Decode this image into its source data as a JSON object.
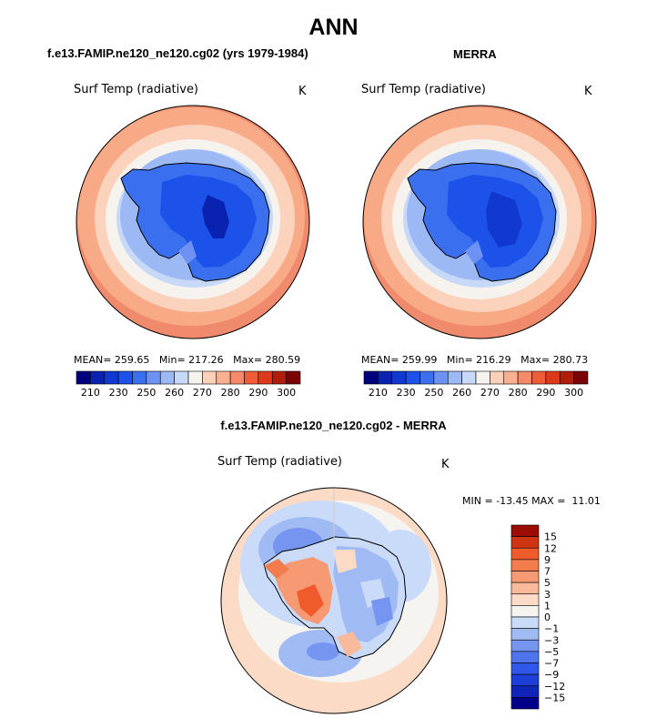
{
  "main_title": "ANN",
  "colors": {
    "abs_scale": [
      "#00007f",
      "#0a22b0",
      "#1238d2",
      "#1d52ea",
      "#3a70f0",
      "#6d92f3",
      "#9cb8f5",
      "#c7d9f7",
      "#f6f2ee",
      "#fbd0b8",
      "#f9b090",
      "#f5896a",
      "#ef5c38",
      "#dd3a1b",
      "#b01d0b",
      "#7a0404"
    ],
    "diff_scale": [
      "#00008a",
      "#0f26b8",
      "#1d3fd8",
      "#2f58ea",
      "#4f74ee",
      "#7595f1",
      "#a0baf4",
      "#c9dbf8",
      "#f5f4f0",
      "#fbdac6",
      "#f9b99b",
      "#f79a74",
      "#f37c4d",
      "#ef5b2b",
      "#cf3412",
      "#9a0c04"
    ],
    "map_ocean_far": "#f08a6c",
    "map_ocean_mid": "#fbd3bd",
    "map_land": "#3a70f0"
  },
  "chart_data": [
    {
      "type": "heatmap",
      "panel": "model",
      "header": "f.e13.FAMIP.ne120_ne120.cg02 (yrs 1979-1984)",
      "title": "Surf Temp (radiative)",
      "units": "K",
      "stats": {
        "mean_label": "MEAN=",
        "mean": "259.65",
        "min_label": "Min=",
        "min": "217.26",
        "max_label": "Max=",
        "max": "280.59"
      },
      "colorbar": {
        "orientation": "horizontal",
        "tick_labels": [
          "210",
          "230",
          "250",
          "260",
          "270",
          "280",
          "290",
          "300"
        ]
      }
    },
    {
      "type": "heatmap",
      "panel": "obs",
      "header": "MERRA",
      "title": "Surf Temp (radiative)",
      "units": "K",
      "stats": {
        "mean_label": "MEAN=",
        "mean": "259.99",
        "min_label": "Min=",
        "min": "216.29",
        "max_label": "Max=",
        "max": "280.73"
      },
      "colorbar": {
        "orientation": "horizontal",
        "tick_labels": [
          "210",
          "230",
          "250",
          "260",
          "270",
          "280",
          "290",
          "300"
        ]
      }
    },
    {
      "type": "heatmap",
      "panel": "diff",
      "header": "f.e13.FAMIP.ne120_ne120.cg02 - MERRA",
      "title": "Surf Temp (radiative)",
      "units": "K",
      "stats": {
        "min_label": "MIN =",
        "min": "-13.45",
        "max_label": "MAX =",
        "max": "11.01"
      },
      "colorbar": {
        "orientation": "vertical",
        "tick_labels": [
          "15",
          "12",
          "9",
          "7",
          "5",
          "3",
          "1",
          "0",
          "−1",
          "−3",
          "−5",
          "−7",
          "−9",
          "−12",
          "−15"
        ]
      }
    }
  ]
}
